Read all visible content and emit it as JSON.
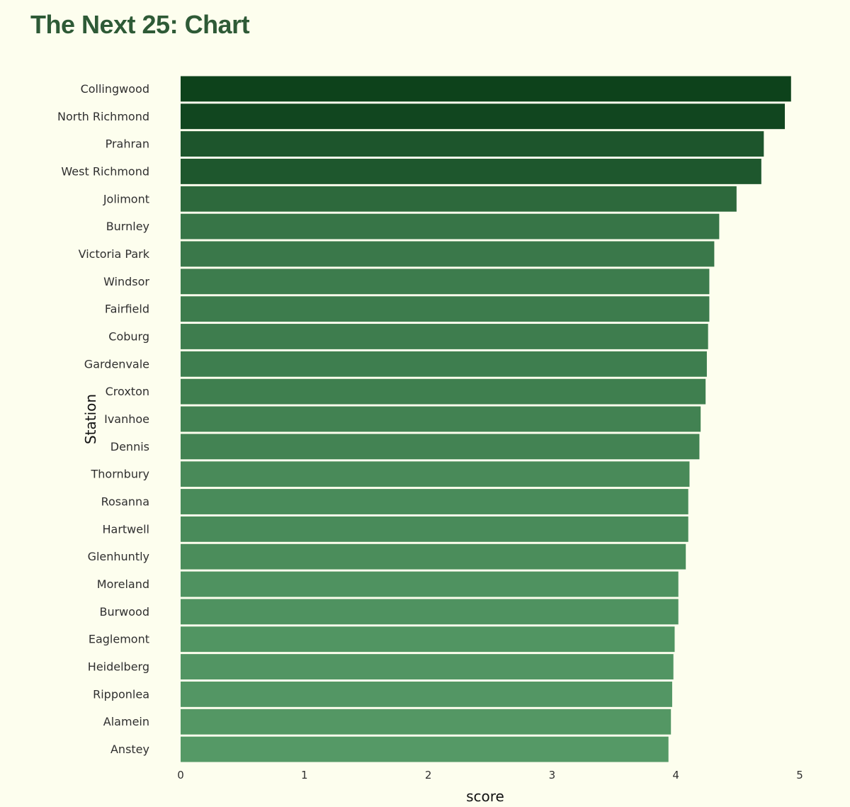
{
  "page": {
    "title": "The Next 25: Chart"
  },
  "colors": {
    "background": "#fdfeee",
    "title": "#2e5a36",
    "bar_dark": "#0d421b",
    "bar_light": "#559966"
  },
  "chart_data": {
    "type": "bar",
    "orientation": "horizontal",
    "title": "The Next 25: Chart",
    "xlabel": "score",
    "ylabel": "Station",
    "xlim": [
      0,
      5
    ],
    "xticks": [
      0,
      1,
      2,
      3,
      4,
      5
    ],
    "grid": false,
    "categories": [
      "Collingwood",
      "North Richmond",
      "Prahran",
      "West Richmond",
      "Jolimont",
      "Burnley",
      "Victoria Park",
      "Windsor",
      "Fairfield",
      "Coburg",
      "Gardenvale",
      "Croxton",
      "Ivanhoe",
      "Dennis",
      "Thornbury",
      "Rosanna",
      "Hartwell",
      "Glenhuntly",
      "Moreland",
      "Burwood",
      "Eaglemont",
      "Heidelberg",
      "Ripponlea",
      "Alamein",
      "Anstey"
    ],
    "values": [
      4.93,
      4.88,
      4.71,
      4.69,
      4.49,
      4.35,
      4.31,
      4.27,
      4.27,
      4.26,
      4.25,
      4.24,
      4.2,
      4.19,
      4.11,
      4.1,
      4.1,
      4.08,
      4.02,
      4.02,
      3.99,
      3.98,
      3.97,
      3.96,
      3.94
    ]
  }
}
